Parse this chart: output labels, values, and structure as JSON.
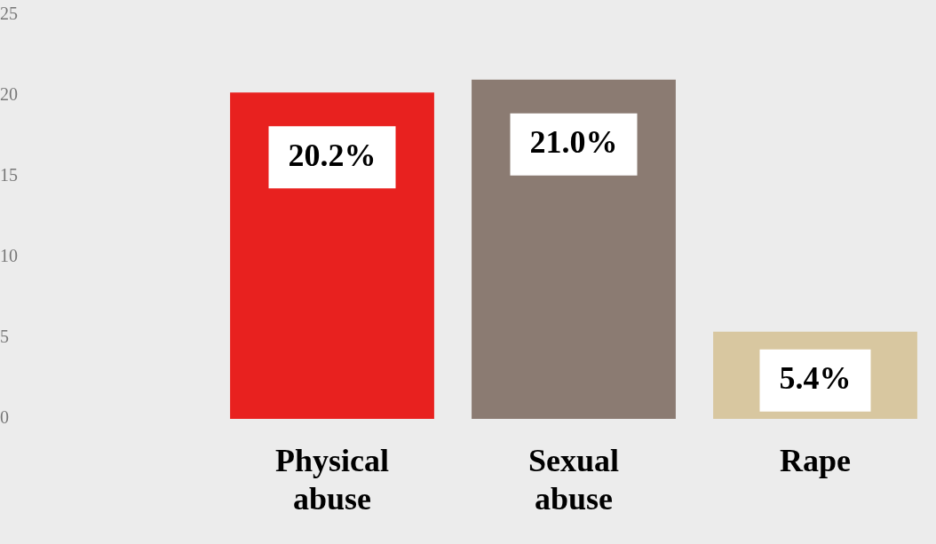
{
  "chart_data": {
    "type": "bar",
    "categories": [
      "Physical abuse",
      "Sexual abuse",
      "Rape"
    ],
    "values": [
      20.2,
      21.0,
      5.4
    ],
    "colors": [
      "#e8211f",
      "#8b7b72",
      "#d8c7a0"
    ],
    "value_labels": [
      "20.2%",
      "21.0%",
      "5.4%"
    ],
    "ylim": [
      0,
      25
    ],
    "yticks": [
      0,
      5,
      10,
      15,
      20,
      25
    ],
    "grid": false,
    "legend": false
  }
}
